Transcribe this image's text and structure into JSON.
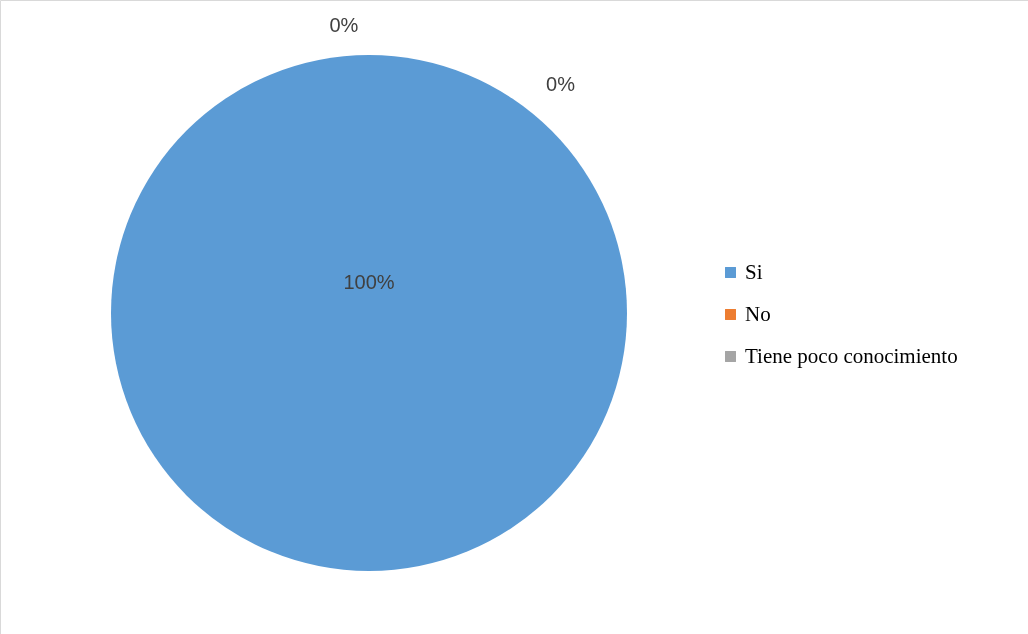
{
  "chart_data": {
    "type": "pie",
    "categories": [
      "Si",
      "No",
      "Tiene poco conocimiento"
    ],
    "values": [
      100,
      0,
      0
    ],
    "colors": [
      "#5b9bd5",
      "#ed7d31",
      "#a5a5a5"
    ],
    "value_labels": [
      "100%",
      "0%",
      "0%"
    ],
    "legend": "right"
  }
}
